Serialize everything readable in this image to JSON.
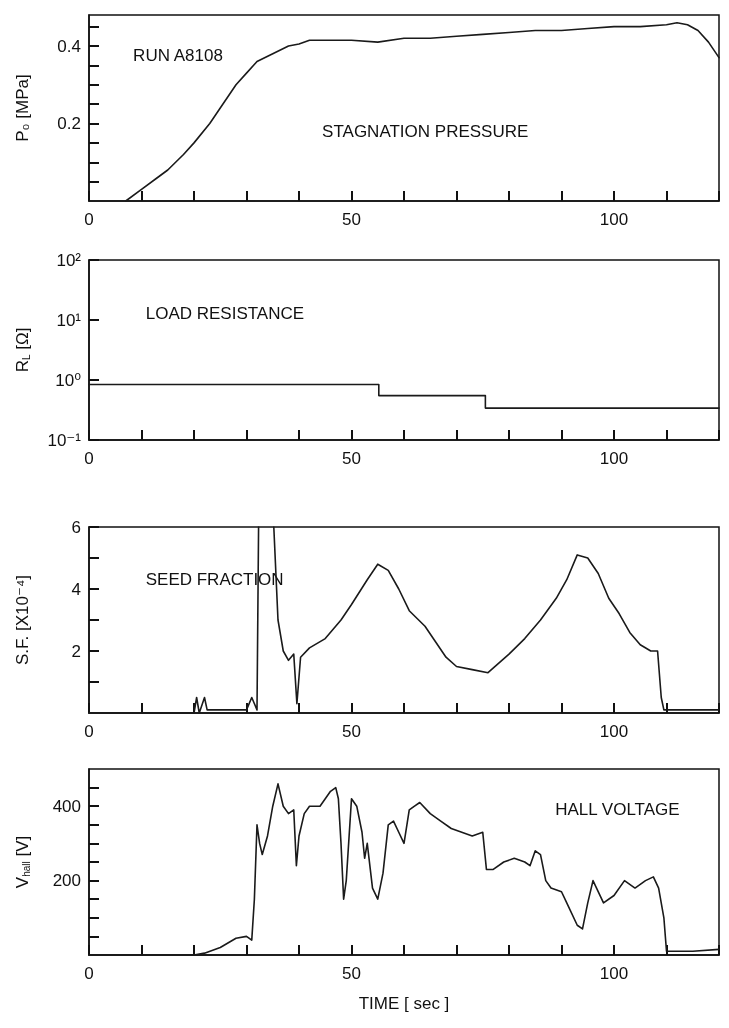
{
  "chart_data": [
    {
      "type": "line",
      "ylabel": "P₀ [MPa]",
      "annotations": [
        "RUN A8108",
        "STAGNATION PRESSURE"
      ],
      "color": "#1a1a1a",
      "marker": "none",
      "xlim": [
        0,
        120
      ],
      "ylim": [
        0,
        0.48
      ],
      "xticks": [
        0,
        {
          "value": 10,
          "label": null
        },
        {
          "value": 20,
          "label": null
        },
        {
          "value": 30,
          "label": null
        },
        {
          "value": 40,
          "label": null
        },
        50,
        {
          "value": 60,
          "label": null
        },
        {
          "value": 70,
          "label": null
        },
        {
          "value": 80,
          "label": null
        },
        {
          "value": 90,
          "label": null
        },
        100,
        {
          "value": 110,
          "label": null
        },
        {
          "value": 120,
          "label": null
        }
      ],
      "yticks": [
        {
          "value": 0.05,
          "label": null
        },
        {
          "value": 0.1,
          "label": null
        },
        {
          "value": 0.15,
          "label": null
        },
        0.2,
        {
          "value": 0.25,
          "label": null
        },
        {
          "value": 0.3,
          "label": null
        },
        {
          "value": 0.35,
          "label": null
        },
        0.4,
        {
          "value": 0.45,
          "label": null
        }
      ],
      "x": [
        7,
        10,
        13,
        15,
        18,
        20,
        23,
        25,
        28,
        30,
        32,
        35,
        38,
        40,
        42,
        45,
        50,
        55,
        60,
        65,
        70,
        75,
        80,
        85,
        90,
        95,
        100,
        105,
        110,
        112,
        114,
        116,
        118,
        120
      ],
      "values": [
        0,
        0.03,
        0.06,
        0.08,
        0.12,
        0.15,
        0.2,
        0.24,
        0.3,
        0.33,
        0.36,
        0.38,
        0.4,
        0.405,
        0.415,
        0.415,
        0.415,
        0.41,
        0.42,
        0.42,
        0.425,
        0.43,
        0.435,
        0.44,
        0.44,
        0.445,
        0.45,
        0.45,
        0.455,
        0.46,
        0.455,
        0.44,
        0.41,
        0.37
      ]
    },
    {
      "type": "step",
      "ylabel": "R$_{L}$ [Ω]",
      "annotations": [
        "LOAD RESISTANCE"
      ],
      "color": "#1a1a1a",
      "marker": "none",
      "log": "y",
      "xlim": [
        0,
        120
      ],
      "ylim": [
        0.1,
        100
      ],
      "xticks": [
        0,
        {
          "value": 10,
          "label": null
        },
        {
          "value": 20,
          "label": null
        },
        {
          "value": 30,
          "label": null
        },
        {
          "value": 40,
          "label": null
        },
        50,
        {
          "value": 60,
          "label": null
        },
        {
          "value": 70,
          "label": null
        },
        {
          "value": 80,
          "label": null
        },
        {
          "value": 90,
          "label": null
        },
        100,
        {
          "value": 110,
          "label": null
        },
        {
          "value": 120,
          "label": null
        }
      ],
      "yticks": [
        {
          "value": 0.1,
          "label": "10⁻¹"
        },
        {
          "value": 1,
          "label": "10⁰"
        },
        {
          "value": 10,
          "label": "10¹"
        },
        {
          "value": 100,
          "label": "10²"
        }
      ],
      "x": [
        0,
        55.2,
        75.5,
        120
      ],
      "values": [
        0.84,
        0.55,
        0.34,
        0.34
      ]
    },
    {
      "type": "line",
      "ylabel": "S.F. [X10⁻⁴]",
      "annotations": [
        "SEED FRACTION"
      ],
      "color": "#1a1a1a",
      "marker": "none",
      "xlim": [
        0,
        120
      ],
      "ylim": [
        0,
        6
      ],
      "xticks": [
        0,
        {
          "value": 10,
          "label": null
        },
        {
          "value": 20,
          "label": null
        },
        {
          "value": 30,
          "label": null
        },
        {
          "value": 40,
          "label": null
        },
        50,
        {
          "value": 60,
          "label": null
        },
        {
          "value": 70,
          "label": null
        },
        {
          "value": 80,
          "label": null
        },
        {
          "value": 90,
          "label": null
        },
        100,
        {
          "value": 110,
          "label": null
        },
        {
          "value": 120,
          "label": null
        }
      ],
      "yticks": [
        {
          "value": 1,
          "label": null
        },
        2,
        {
          "value": 3,
          "label": null
        },
        4,
        {
          "value": 5,
          "label": null
        },
        6
      ],
      "x": [
        0,
        20,
        20.5,
        21,
        22,
        22.5,
        25,
        30,
        31,
        32,
        32.3,
        33,
        35.2,
        36,
        37,
        38,
        39,
        39.6,
        40.3,
        42,
        45,
        48,
        50,
        53,
        55,
        57,
        59,
        61,
        64,
        66,
        68,
        70,
        73,
        76,
        78,
        80,
        83,
        86,
        89,
        91,
        93,
        95,
        97,
        99,
        101,
        103,
        105,
        107,
        108.3,
        109,
        109.5,
        120
      ],
      "values": [
        0,
        0,
        0.5,
        0,
        0.5,
        0.1,
        0.1,
        0.1,
        0.5,
        0.1,
        6,
        null,
        6,
        3,
        2,
        1.7,
        1.9,
        0.3,
        1.8,
        2.1,
        2.4,
        3,
        3.5,
        4.3,
        4.8,
        4.6,
        4,
        3.3,
        2.8,
        2.3,
        1.8,
        1.5,
        1.4,
        1.3,
        1.6,
        1.9,
        2.4,
        3,
        3.7,
        4.3,
        5.1,
        5,
        4.5,
        3.7,
        3.2,
        2.6,
        2.2,
        2,
        2,
        0.5,
        0.1,
        0.1
      ]
    },
    {
      "type": "line",
      "ylabel": "V$_{hall}$ [V]",
      "xlabel": "TIME [ sec ]",
      "annotations": [
        "HALL VOLTAGE"
      ],
      "color": "#1a1a1a",
      "marker": "none",
      "xlim": [
        0,
        120
      ],
      "ylim": [
        0,
        500
      ],
      "xticks": [
        0,
        {
          "value": 10,
          "label": null
        },
        {
          "value": 20,
          "label": null
        },
        {
          "value": 30,
          "label": null
        },
        {
          "value": 40,
          "label": null
        },
        50,
        {
          "value": 60,
          "label": null
        },
        {
          "value": 70,
          "label": null
        },
        {
          "value": 80,
          "label": null
        },
        {
          "value": 90,
          "label": null
        },
        100,
        {
          "value": 110,
          "label": null
        },
        {
          "value": 120,
          "label": null
        }
      ],
      "yticks": [
        {
          "value": 50,
          "label": null
        },
        {
          "value": 100,
          "label": null
        },
        {
          "value": 150,
          "label": null
        },
        200,
        {
          "value": 250,
          "label": null
        },
        {
          "value": 300,
          "label": null
        },
        {
          "value": 350,
          "label": null
        },
        400,
        {
          "value": 450,
          "label": null
        }
      ],
      "x": [
        0,
        20,
        22,
        25,
        28,
        30,
        31,
        31.5,
        32,
        32.5,
        33,
        34,
        35,
        36,
        37,
        38,
        39,
        39.5,
        40,
        41,
        42,
        44,
        45,
        46,
        47,
        47.5,
        48,
        48.5,
        49,
        50,
        51,
        52,
        52.5,
        53,
        54,
        55,
        56,
        57,
        58,
        59,
        60,
        61,
        62,
        63,
        65,
        67,
        69,
        71,
        73,
        75,
        75.7,
        77,
        79,
        81,
        83,
        84,
        85,
        86,
        87,
        88,
        90,
        91,
        93,
        94,
        95,
        96,
        98,
        100,
        102,
        104,
        106,
        107.5,
        108.5,
        109.5,
        110,
        115,
        120
      ],
      "values": [
        0,
        0,
        5,
        20,
        45,
        50,
        40,
        150,
        350,
        300,
        270,
        320,
        400,
        460,
        400,
        380,
        390,
        240,
        320,
        380,
        400,
        400,
        420,
        440,
        450,
        420,
        300,
        150,
        200,
        420,
        400,
        330,
        260,
        300,
        180,
        150,
        220,
        350,
        360,
        330,
        300,
        390,
        400,
        410,
        380,
        360,
        340,
        330,
        320,
        330,
        230,
        230,
        250,
        260,
        250,
        240,
        280,
        270,
        200,
        180,
        170,
        140,
        80,
        70,
        140,
        200,
        140,
        160,
        200,
        180,
        200,
        210,
        180,
        100,
        10,
        10,
        15
      ]
    }
  ]
}
